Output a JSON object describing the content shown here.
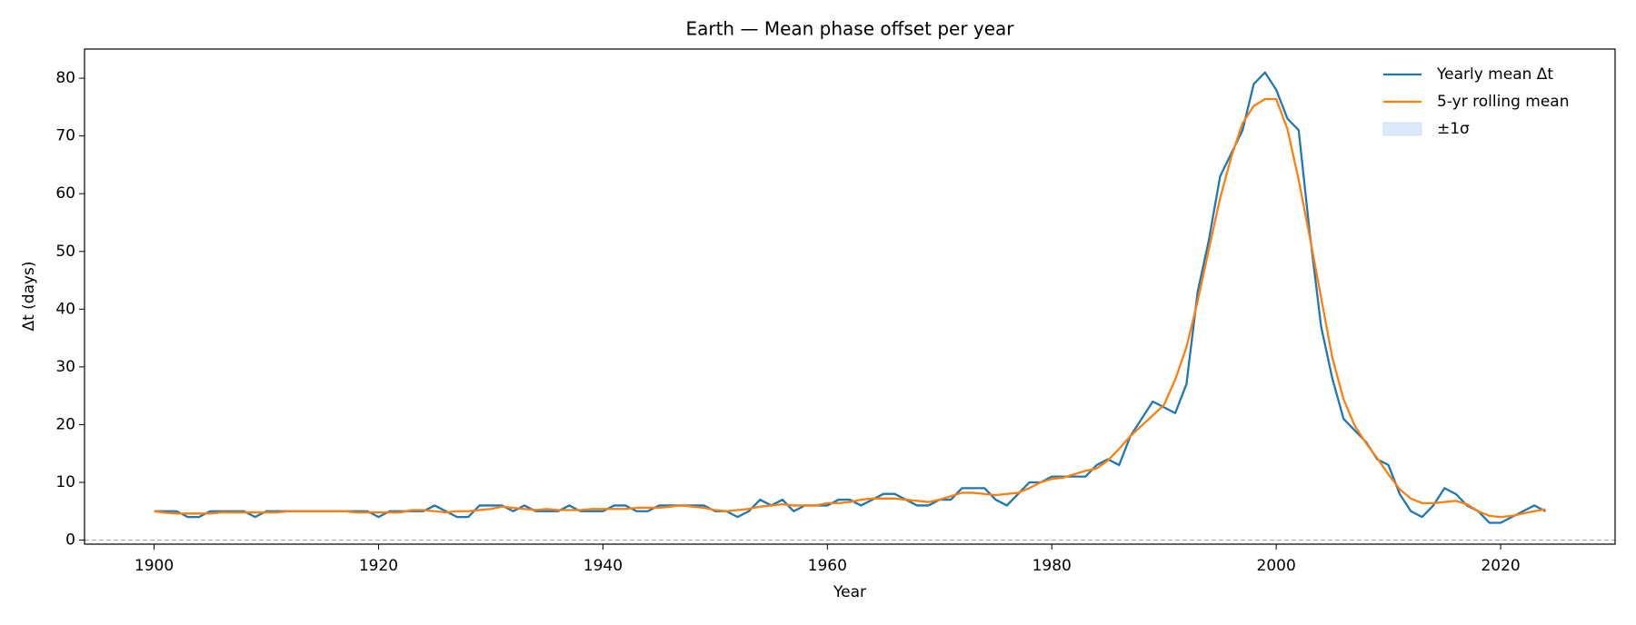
{
  "chart_data": {
    "type": "line",
    "title": "Earth — Mean phase offset per year",
    "xlabel": "Year",
    "ylabel": "Δt (days)",
    "x": [
      1900,
      1901,
      1902,
      1903,
      1904,
      1905,
      1906,
      1907,
      1908,
      1909,
      1910,
      1911,
      1912,
      1913,
      1914,
      1915,
      1916,
      1917,
      1918,
      1919,
      1920,
      1921,
      1922,
      1923,
      1924,
      1925,
      1926,
      1927,
      1928,
      1929,
      1930,
      1931,
      1932,
      1933,
      1934,
      1935,
      1936,
      1937,
      1938,
      1939,
      1940,
      1941,
      1942,
      1943,
      1944,
      1945,
      1946,
      1947,
      1948,
      1949,
      1950,
      1951,
      1952,
      1953,
      1954,
      1955,
      1956,
      1957,
      1958,
      1959,
      1960,
      1961,
      1962,
      1963,
      1964,
      1965,
      1966,
      1967,
      1968,
      1969,
      1970,
      1971,
      1972,
      1973,
      1974,
      1975,
      1976,
      1977,
      1978,
      1979,
      1980,
      1981,
      1982,
      1983,
      1984,
      1985,
      1986,
      1987,
      1988,
      1989,
      1990,
      1991,
      1992,
      1993,
      1994,
      1995,
      1996,
      1997,
      1998,
      1999,
      2000,
      2001,
      2002,
      2003,
      2004,
      2005,
      2006,
      2007,
      2008,
      2009,
      2010,
      2011,
      2012,
      2013,
      2014,
      2015,
      2016,
      2017,
      2018,
      2019,
      2020,
      2021,
      2022,
      2023,
      2024
    ],
    "series": [
      {
        "name": "Yearly mean Δt",
        "color": "#1f77b4",
        "values": [
          5,
          5,
          5,
          4,
          4,
          5,
          5,
          5,
          5,
          4,
          5,
          5,
          5,
          5,
          5,
          5,
          5,
          5,
          5,
          5,
          4,
          5,
          5,
          5,
          5,
          6,
          5,
          4,
          4,
          6,
          6,
          6,
          5,
          6,
          5,
          5,
          5,
          6,
          5,
          5,
          5,
          6,
          6,
          5,
          5,
          6,
          6,
          6,
          6,
          6,
          5,
          5,
          4,
          5,
          7,
          6,
          7,
          5,
          6,
          6,
          6,
          7,
          7,
          6,
          7,
          8,
          8,
          7,
          6,
          6,
          7,
          7,
          9,
          9,
          9,
          7,
          6,
          8,
          10,
          10,
          11,
          11,
          11,
          11,
          13,
          14,
          13,
          18,
          21,
          24,
          23,
          22,
          27,
          43,
          52,
          63,
          67,
          71,
          79,
          81,
          78,
          73,
          71,
          53,
          37,
          28,
          21,
          19,
          17,
          14,
          13,
          8,
          5,
          4,
          6,
          9,
          8,
          6,
          5,
          3,
          3,
          4,
          5,
          6,
          5
        ]
      },
      {
        "name": "5-yr rolling mean",
        "color": "#ff7f0e",
        "values": [
          5.0,
          4.75,
          4.6,
          4.6,
          4.6,
          4.6,
          4.8,
          4.8,
          4.8,
          4.8,
          4.8,
          4.8,
          5.0,
          5.0,
          5.0,
          5.0,
          5.0,
          5.0,
          4.8,
          4.8,
          4.8,
          4.8,
          4.8,
          5.2,
          5.2,
          5.0,
          4.8,
          5.0,
          5.0,
          5.2,
          5.4,
          5.8,
          5.6,
          5.4,
          5.2,
          5.4,
          5.2,
          5.2,
          5.2,
          5.4,
          5.4,
          5.4,
          5.4,
          5.6,
          5.6,
          5.6,
          5.8,
          6.0,
          5.8,
          5.6,
          5.2,
          5.0,
          5.2,
          5.4,
          5.8,
          6.0,
          6.2,
          6.0,
          6.0,
          6.0,
          6.4,
          6.4,
          6.6,
          7.0,
          7.2,
          7.2,
          7.2,
          7.0,
          6.8,
          6.6,
          7.0,
          7.6,
          8.2,
          8.2,
          8.0,
          7.8,
          8.0,
          8.2,
          9.0,
          10.0,
          10.6,
          10.8,
          11.4,
          12.0,
          12.4,
          13.8,
          15.8,
          18.0,
          19.8,
          21.6,
          23.4,
          27.8,
          33.4,
          41.4,
          50.4,
          59.2,
          66.4,
          72.2,
          75.2,
          76.4,
          76.4,
          71.2,
          62.4,
          52.4,
          42.0,
          31.6,
          24.4,
          19.8,
          16.8,
          14.2,
          11.4,
          8.8,
          7.2,
          6.4,
          6.4,
          6.6,
          6.8,
          6.2,
          5.0,
          4.2,
          4.0,
          4.2,
          4.6,
          5.0,
          5.33
        ]
      }
    ],
    "band": {
      "name": "±1σ",
      "color": "#dbe9fa"
    },
    "reference_line": {
      "y": 0,
      "color": "#aaaaaa"
    },
    "xlim": [
      1893.8,
      2030.2
    ],
    "ylim": [
      -0.7,
      85.05
    ],
    "xticks": [
      1900,
      1920,
      1940,
      1960,
      1980,
      2000,
      2020
    ],
    "yticks": [
      0,
      10,
      20,
      30,
      40,
      50,
      60,
      70,
      80
    ],
    "legend": "upper right",
    "grid": false
  }
}
